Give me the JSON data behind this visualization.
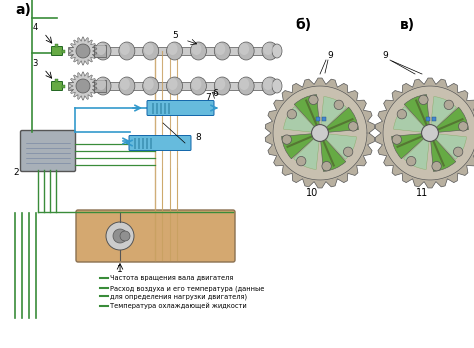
{
  "title_a": "а)",
  "title_b": "б)",
  "title_c": "в)",
  "label_1": "1",
  "label_2": "2",
  "label_3": "3",
  "label_4": "4",
  "label_5": "5",
  "label_6": "6",
  "label_7": "7",
  "label_8": "8",
  "label_9a": "9",
  "label_9b": "9",
  "label_10": "10",
  "label_11": "11",
  "text_line1": "Частота вращения вала двигателя",
  "text_line2": "Расход воздуха и его температура (данные",
  "text_line3": "для определения нагрузки двигателя)",
  "text_line4": "Температура охлаждающей жидкости",
  "green_color": "#3a8c3a",
  "blue_color": "#3399cc",
  "light_blue": "#66bbdd",
  "orange_tan": "#c8a060",
  "gray_metal": "#aaaaaa",
  "dark_gray": "#555555",
  "light_gray": "#cccccc",
  "green_fill": "#66aa44",
  "light_green": "#aaccaa",
  "tan_fill": "#d4a870",
  "bg_color": "#ffffff",
  "gear_bg": "#c8c0b0",
  "gear_outer": "#b8b0a0"
}
